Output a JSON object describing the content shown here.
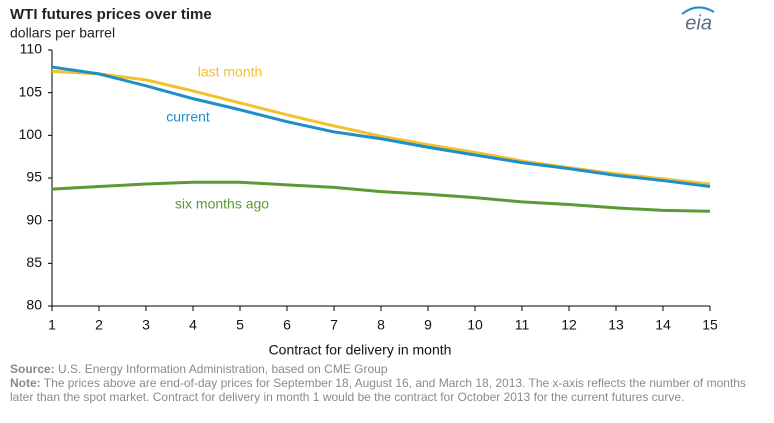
{
  "chart_data": {
    "type": "line",
    "title": "WTI futures prices over time",
    "subtitle": "dollars per barrel",
    "logo": "eia",
    "x_label": "Contract for delivery in month",
    "x": [
      1,
      2,
      3,
      4,
      5,
      6,
      7,
      8,
      9,
      10,
      11,
      12,
      13,
      14,
      15
    ],
    "xlim": [
      1,
      15
    ],
    "xticks": [
      1,
      2,
      3,
      4,
      5,
      6,
      7,
      8,
      9,
      10,
      11,
      12,
      13,
      14,
      15
    ],
    "ylim": [
      80,
      110
    ],
    "yticks": [
      80,
      85,
      90,
      95,
      100,
      105,
      110
    ],
    "grid": false,
    "series": [
      {
        "name": "last month",
        "color": "#f2c12e",
        "values": [
          107.5,
          107.2,
          106.5,
          105.2,
          103.8,
          102.4,
          101.1,
          99.9,
          98.9,
          98.0,
          97.0,
          96.2,
          95.5,
          94.9,
          94.3
        ]
      },
      {
        "name": "current",
        "color": "#1e8fc8",
        "values": [
          108.0,
          107.2,
          105.8,
          104.3,
          103.0,
          101.6,
          100.4,
          99.6,
          98.6,
          97.7,
          96.8,
          96.1,
          95.3,
          94.7,
          94.0
        ]
      },
      {
        "name": "six months ago",
        "color": "#5a9a35",
        "values": [
          93.7,
          94.0,
          94.3,
          94.5,
          94.5,
          94.2,
          93.9,
          93.4,
          93.1,
          92.7,
          92.2,
          91.9,
          91.5,
          91.2,
          91.1
        ]
      }
    ],
    "source_label": "Source:",
    "source": "U.S. Energy Information Administration, based on CME Group",
    "note_label": "Note:",
    "note": "The prices above are end-of-day prices for September 18, August 16, and March 18, 2013. The x-axis reflects the number of months later than the spot market. Contract for delivery in month 1 would be the contract for October 2013 for the current futures curve."
  }
}
